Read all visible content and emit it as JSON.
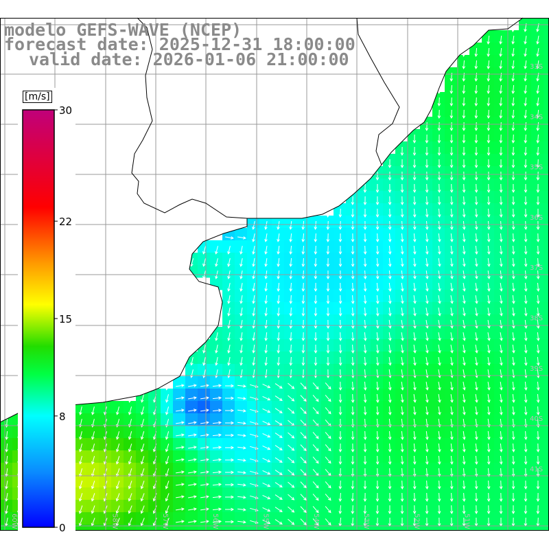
{
  "title": {
    "line1": "modelo GEFS-WAVE (NCEP)",
    "line2": "forecast date: 2025-12-31 18:00:00",
    "line3": "valid date: 2026-01-06 21:00:00"
  },
  "colorbar": {
    "unit": "[m/s]",
    "min": 0,
    "max": 30,
    "ticks": [
      {
        "value": 30,
        "label": "30"
      },
      {
        "value": 22,
        "label": "22"
      },
      {
        "value": 15,
        "label": "15"
      },
      {
        "value": 8,
        "label": "8"
      },
      {
        "value": 0,
        "label": "0"
      }
    ],
    "stops": [
      {
        "value": 0,
        "color": "#0000ff"
      },
      {
        "value": 4,
        "color": "#0a8cff"
      },
      {
        "value": 8,
        "color": "#00ffff"
      },
      {
        "value": 11,
        "color": "#00ff44"
      },
      {
        "value": 13,
        "color": "#22dd00"
      },
      {
        "value": 16,
        "color": "#ffff00"
      },
      {
        "value": 19,
        "color": "#ff9900"
      },
      {
        "value": 23,
        "color": "#ff0000"
      },
      {
        "value": 30,
        "color": "#c0007a"
      }
    ]
  },
  "map": {
    "lon_labels": [
      "60W",
      "59W",
      "58W",
      "57W",
      "56W",
      "55W",
      "54W",
      "53W",
      "52W",
      "51W"
    ],
    "lat_labels": [
      "33S",
      "34S",
      "35S",
      "36S",
      "37S",
      "38S",
      "39S",
      "40S",
      "41S"
    ],
    "land_color": "#ffffff",
    "coast_color": "#000000",
    "grid_color": "#999999",
    "arrow_color": "#ffffff",
    "arrow_icon": "wind-arrow-icon"
  }
}
